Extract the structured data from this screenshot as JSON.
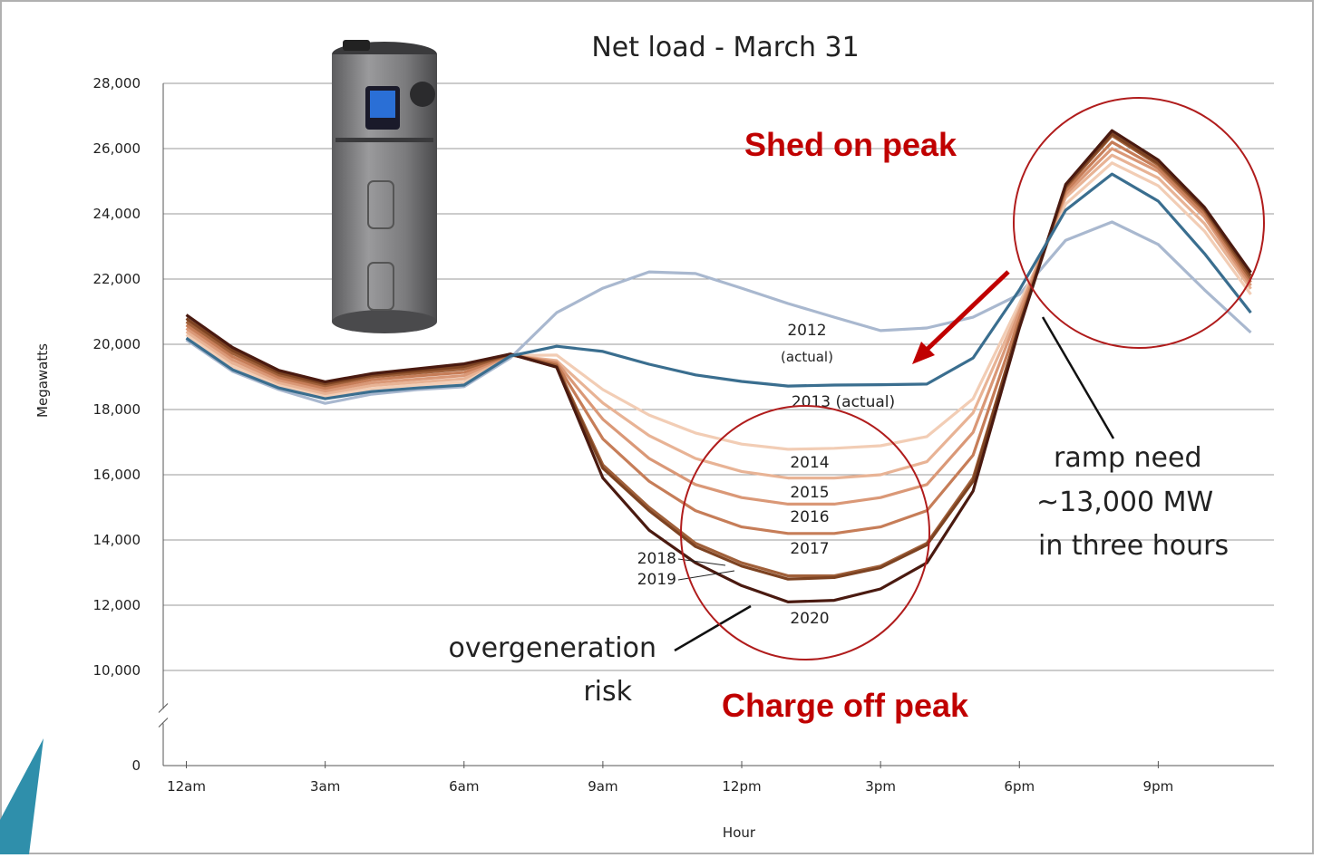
{
  "chart_data": {
    "type": "line",
    "title": "Net load - March 31",
    "xlabel": "Hour",
    "ylabel": "Megawatts",
    "x": [
      0,
      1,
      2,
      3,
      4,
      5,
      6,
      7,
      8,
      9,
      10,
      11,
      12,
      13,
      14,
      15,
      16,
      17,
      18,
      19,
      20,
      21,
      22,
      23
    ],
    "xlim": [
      -0.5,
      23.5
    ],
    "xticks": [
      {
        "value": 0,
        "label": "12am"
      },
      {
        "value": 3,
        "label": "3am"
      },
      {
        "value": 6,
        "label": "6am"
      },
      {
        "value": 9,
        "label": "9am"
      },
      {
        "value": 12,
        "label": "12pm"
      },
      {
        "value": 15,
        "label": "3pm"
      },
      {
        "value": 18,
        "label": "6pm"
      },
      {
        "value": 21,
        "label": "9pm"
      }
    ],
    "ylim": [
      0,
      28000
    ],
    "y_axis_break": true,
    "yticks": [
      0,
      {
        "value": 10000,
        "label": "10,000"
      },
      {
        "value": 12000,
        "label": "12,000"
      },
      {
        "value": 14000,
        "label": "14,000"
      },
      {
        "value": 16000,
        "label": "16,000"
      },
      {
        "value": 18000,
        "label": "18,000"
      },
      {
        "value": 20000,
        "label": "20,000"
      },
      {
        "value": 22000,
        "label": "22,000"
      },
      {
        "value": 24000,
        "label": "24,000"
      },
      {
        "value": 26000,
        "label": "26,000"
      },
      {
        "value": 28000,
        "label": "28,000"
      }
    ],
    "grid": true,
    "series": [
      {
        "name": "2012",
        "color": "#a9b8cf",
        "values": [
          20140,
          19170,
          18610,
          18190,
          18470,
          18610,
          18700,
          19580,
          20970,
          21720,
          22220,
          22170,
          21720,
          21250,
          20830,
          20420,
          20500,
          20830,
          21530,
          23190,
          23750,
          23060,
          21670,
          20360
        ]
      },
      {
        "name": "2014",
        "color": "#f2cdb5",
        "values": [
          20290,
          19320,
          18740,
          18410,
          18640,
          18750,
          18840,
          19650,
          19670,
          18610,
          17830,
          17280,
          16940,
          16780,
          16810,
          16890,
          17170,
          18330,
          21250,
          24300,
          25560,
          24860,
          23470,
          21530
        ]
      },
      {
        "name": "2015",
        "color": "#e8b395",
        "values": [
          20390,
          19420,
          18820,
          18490,
          18730,
          18840,
          18940,
          19660,
          19500,
          18200,
          17200,
          16500,
          16100,
          15900,
          15900,
          16000,
          16400,
          17900,
          21100,
          24500,
          25800,
          25100,
          23700,
          21700
        ]
      },
      {
        "name": "2016",
        "color": "#da9877",
        "values": [
          20490,
          19520,
          18900,
          18570,
          18820,
          18930,
          19040,
          19670,
          19450,
          17700,
          16500,
          15700,
          15300,
          15100,
          15100,
          15300,
          15700,
          17300,
          21000,
          24600,
          26000,
          25300,
          23900,
          21800
        ]
      },
      {
        "name": "2017",
        "color": "#c67d58",
        "values": [
          20590,
          19620,
          18980,
          18650,
          18910,
          19030,
          19140,
          19680,
          19400,
          17100,
          15800,
          14900,
          14400,
          14200,
          14200,
          14400,
          14900,
          16600,
          20800,
          24700,
          26200,
          25400,
          24000,
          21900
        ]
      },
      {
        "name": "2018",
        "color": "#a0603a",
        "values": [
          20690,
          19720,
          19060,
          18730,
          19000,
          19120,
          19240,
          19690,
          19350,
          16300,
          15000,
          13900,
          13300,
          12900,
          12900,
          13200,
          13900,
          15900,
          20600,
          24800,
          26400,
          25500,
          24100,
          22000
        ]
      },
      {
        "name": "2019",
        "color": "#7d4322",
        "values": [
          20790,
          19810,
          19130,
          18790,
          19050,
          19190,
          19320,
          19700,
          19300,
          16200,
          14900,
          13800,
          13200,
          12800,
          12850,
          13150,
          13850,
          15800,
          20600,
          24850,
          26450,
          25550,
          24150,
          22100
        ]
      },
      {
        "name": "2020",
        "color": "#4a1a10",
        "values": [
          20900,
          19900,
          19200,
          18850,
          19100,
          19250,
          19400,
          19700,
          19300,
          15900,
          14300,
          13300,
          12600,
          12100,
          12150,
          12500,
          13300,
          15500,
          20500,
          24900,
          26550,
          25650,
          24200,
          22200
        ]
      },
      {
        "name": "2013",
        "color": "#3a6e8f",
        "values": [
          20190,
          19220,
          18660,
          18330,
          18550,
          18660,
          18750,
          19640,
          19940,
          19780,
          19390,
          19060,
          18860,
          18720,
          18750,
          18760,
          18780,
          19580,
          21670,
          24110,
          25220,
          24390,
          22780,
          20970
        ]
      }
    ],
    "annotations": {
      "y2012": "2012",
      "y2012_note": "(actual)",
      "y2013": "2013 (actual)",
      "y2014": "2014",
      "y2015": "2015",
      "y2016": "2016",
      "y2017": "2017",
      "y2018": "2018",
      "y2019": "2019",
      "y2020": "2020",
      "overgen1": "overgeneration",
      "overgen2": "risk",
      "ramp1": "ramp need",
      "ramp2": "~13,000 MW",
      "ramp3": "in three hours",
      "shed": "Shed on peak",
      "charge": "Charge off peak"
    }
  }
}
